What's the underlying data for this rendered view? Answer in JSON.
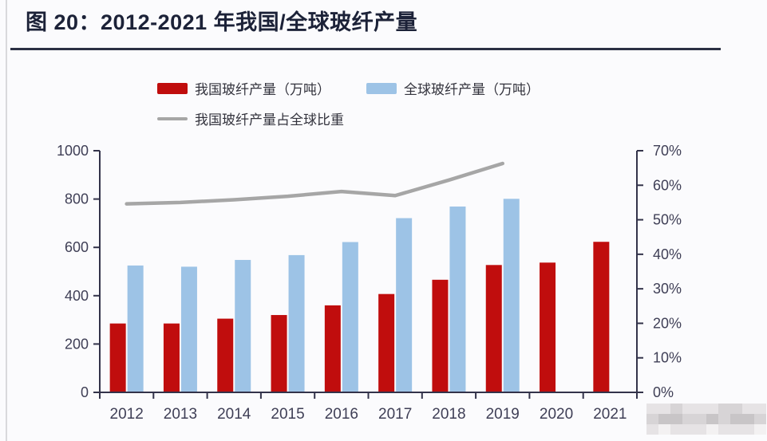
{
  "title": "图 20：2012-2021 年我国/全球玻纤产量",
  "legend": {
    "china": "我国玻纤产量（万吨）",
    "global": "全球玻纤产量（万吨）",
    "share": "我国玻纤产量占全球比重"
  },
  "colors": {
    "china_bar": "#c00d0d",
    "global_bar": "#9dc3e6",
    "share_line": "#a6a6a6",
    "axis": "#33334a",
    "tick_text": "#3f3f56",
    "title_text": "#1c2238",
    "underline": "#2b3044"
  },
  "chart_data": {
    "type": "bar",
    "note": "dual-axis combo: two bar series on left axis, one line series on right percent axis",
    "categories": [
      "2012",
      "2013",
      "2014",
      "2015",
      "2016",
      "2017",
      "2018",
      "2019",
      "2020",
      "2021"
    ],
    "series": [
      {
        "name": "我国玻纤产量（万吨）",
        "type": "bar",
        "axis": "left",
        "color_key": "china_bar",
        "values": [
          285,
          285,
          305,
          320,
          360,
          407,
          466,
          527,
          537,
          623
        ]
      },
      {
        "name": "全球玻纤产量（万吨）",
        "type": "bar",
        "axis": "left",
        "color_key": "global_bar",
        "values": [
          525,
          520,
          548,
          568,
          622,
          721,
          769,
          801,
          null,
          null
        ]
      },
      {
        "name": "我国玻纤产量占全球比重",
        "type": "line",
        "axis": "right",
        "color_key": "share_line",
        "values": [
          54.6,
          55.0,
          55.8,
          56.8,
          58.2,
          57.0,
          61.5,
          66.3,
          null,
          null
        ]
      }
    ],
    "left_axis": {
      "ticks": [
        0,
        200,
        400,
        600,
        800,
        1000
      ],
      "min": 0,
      "max": 1000
    },
    "right_axis": {
      "tick_values": [
        0,
        10,
        20,
        30,
        40,
        50,
        60,
        70
      ],
      "tick_labels": [
        "0%",
        "10%",
        "20%",
        "30%",
        "40%",
        "50%",
        "60%",
        "70%"
      ],
      "min": 0,
      "max": 70
    },
    "grid": false,
    "legend_position": "top"
  },
  "watermark": {
    "palette": [
      "#f3f1f2",
      "#e6e3e5",
      "#d7d4d6",
      "#c8c5c7"
    ],
    "rows": [
      "1121112211",
      "2332232332",
      "1011101110"
    ]
  }
}
